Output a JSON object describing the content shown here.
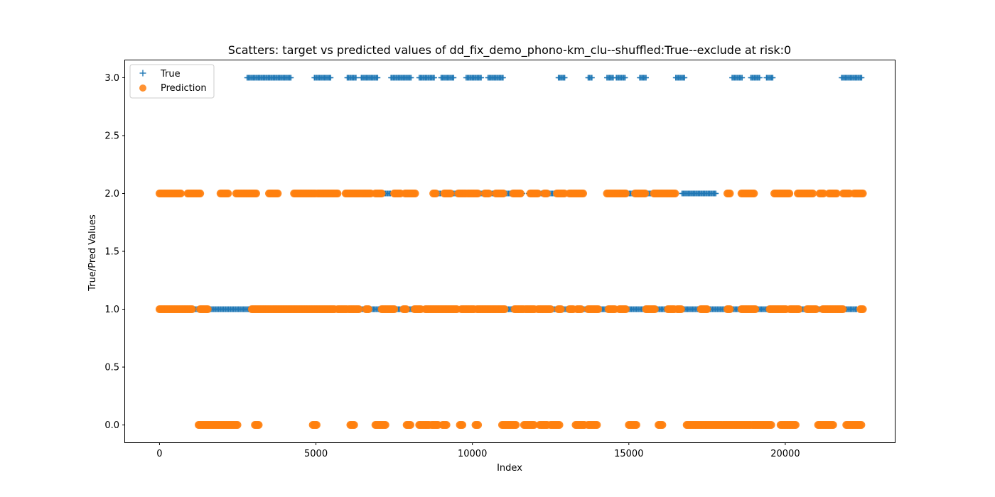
{
  "chart_data": {
    "type": "scatter",
    "title": "Scatters: target vs predicted values of dd_fix_demo_phono-km_clu--shuffled:True--exclude at risk:0",
    "xlabel": "Index",
    "ylabel": "True/Pred Values",
    "xlim": [
      -1100,
      23500
    ],
    "ylim": [
      -0.15,
      3.15
    ],
    "xticks": [
      0,
      5000,
      10000,
      15000,
      20000
    ],
    "xtick_labels": [
      "0",
      "5000",
      "10000",
      "15000",
      "20000"
    ],
    "yticks": [
      0.0,
      0.5,
      1.0,
      1.5,
      2.0,
      2.5,
      3.0
    ],
    "ytick_labels": [
      "0.0",
      "0.5",
      "1.0",
      "1.5",
      "2.0",
      "2.5",
      "3.0"
    ],
    "grid": false,
    "legend_position": "top-left",
    "series": [
      {
        "name": "True",
        "marker": "plus",
        "color": "#1f77b4",
        "segments": [
          {
            "y": 3,
            "ranges": [
              [
                2800,
                4200
              ],
              [
                4950,
                5500
              ],
              [
                6000,
                6300
              ],
              [
                6450,
                7000
              ],
              [
                7400,
                8050
              ],
              [
                8300,
                8800
              ],
              [
                9000,
                9400
              ],
              [
                9800,
                10300
              ],
              [
                10500,
                11000
              ],
              [
                12750,
                12950
              ],
              [
                13700,
                13850
              ],
              [
                14300,
                14500
              ],
              [
                14600,
                14900
              ],
              [
                15350,
                15550
              ],
              [
                16500,
                16800
              ],
              [
                18300,
                18650
              ],
              [
                18900,
                19200
              ],
              [
                19400,
                19600
              ],
              [
                21800,
                22450
              ]
            ]
          },
          {
            "y": 2,
            "ranges": [
              [
                7100,
                7400
              ],
              [
                8900,
                9000
              ],
              [
                9200,
                9700
              ],
              [
                10200,
                11600
              ],
              [
                11800,
                12800
              ],
              [
                14700,
                15700
              ],
              [
                16700,
                17800
              ]
            ]
          },
          {
            "y": 1,
            "ranges": [
              [
                0,
                22300
              ]
            ]
          }
        ]
      },
      {
        "name": "Prediction",
        "marker": "circle",
        "color": "#ff7f0e",
        "segments": [
          {
            "y": 2,
            "ranges": [
              [
                0,
                700
              ],
              [
                900,
                1300
              ],
              [
                1950,
                2200
              ],
              [
                2450,
                3100
              ],
              [
                3500,
                3800
              ],
              [
                4300,
                5000
              ],
              [
                5050,
                5700
              ],
              [
                5950,
                6750
              ],
              [
                6900,
                7100
              ],
              [
                7500,
                7700
              ],
              [
                7850,
                8200
              ],
              [
                8750,
                8850
              ],
              [
                9100,
                9300
              ],
              [
                9550,
                9800
              ],
              [
                9850,
                10200
              ],
              [
                10400,
                10550
              ],
              [
                10750,
                11000
              ],
              [
                11300,
                11550
              ],
              [
                11850,
                12100
              ],
              [
                12300,
                12400
              ],
              [
                12700,
                12950
              ],
              [
                13100,
                13550
              ],
              [
                14300,
                14900
              ],
              [
                15200,
                15550
              ],
              [
                15800,
                16500
              ],
              [
                18150,
                18250
              ],
              [
                18600,
                19000
              ],
              [
                19650,
                20150
              ],
              [
                20400,
                20900
              ],
              [
                21100,
                21250
              ],
              [
                21400,
                21650
              ],
              [
                21850,
                22050
              ],
              [
                22200,
                22500
              ]
            ]
          },
          {
            "y": 1,
            "ranges": [
              [
                0,
                1050
              ],
              [
                1300,
                1550
              ],
              [
                2950,
                5600
              ],
              [
                5700,
                6000
              ],
              [
                6050,
                6400
              ],
              [
                6600,
                6700
              ],
              [
                7100,
                7500
              ],
              [
                7800,
                7900
              ],
              [
                8150,
                8350
              ],
              [
                8500,
                9500
              ],
              [
                9650,
                10050
              ],
              [
                10150,
                11050
              ],
              [
                11350,
                11650
              ],
              [
                11700,
                12000
              ],
              [
                12100,
                12500
              ],
              [
                12750,
                12850
              ],
              [
                13100,
                13250
              ],
              [
                13350,
                13500
              ],
              [
                13700,
                14050
              ],
              [
                14350,
                14550
              ],
              [
                14700,
                14900
              ],
              [
                15550,
                15850
              ],
              [
                16250,
                16450
              ],
              [
                16550,
                16700
              ],
              [
                17300,
                17500
              ],
              [
                18150,
                18250
              ],
              [
                18600,
                19050
              ],
              [
                19500,
                20050
              ],
              [
                20150,
                20450
              ],
              [
                20700,
                21000
              ],
              [
                21200,
                21850
              ],
              [
                22400,
                22500
              ]
            ]
          },
          {
            "y": 0,
            "ranges": [
              [
                1250,
                2500
              ],
              [
                3050,
                3200
              ],
              [
                4900,
                5050
              ],
              [
                6100,
                6250
              ],
              [
                6900,
                7250
              ],
              [
                7900,
                8050
              ],
              [
                8300,
                8650
              ],
              [
                8700,
                8900
              ],
              [
                9050,
                9200
              ],
              [
                9600,
                9700
              ],
              [
                10100,
                10200
              ],
              [
                10950,
                11400
              ],
              [
                11650,
                12000
              ],
              [
                12150,
                12400
              ],
              [
                12500,
                12800
              ],
              [
                13300,
                13600
              ],
              [
                13700,
                14000
              ],
              [
                15000,
                15250
              ],
              [
                15950,
                16100
              ],
              [
                16850,
                18900
              ],
              [
                18950,
                19550
              ],
              [
                19850,
                20350
              ],
              [
                21050,
                21550
              ],
              [
                21950,
                22450
              ]
            ]
          }
        ]
      }
    ]
  }
}
